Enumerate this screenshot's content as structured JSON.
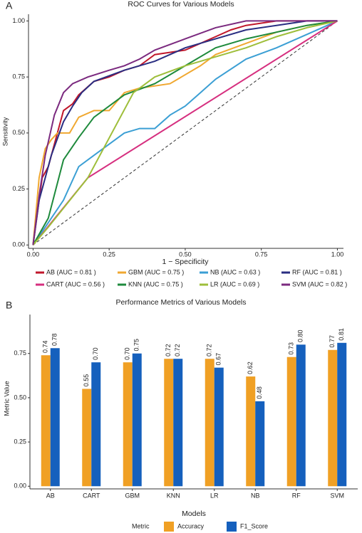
{
  "chart_data": [
    {
      "type": "line",
      "panel_label": "A",
      "title": "ROC Curves for Various Models",
      "x_label": "1 − Specificity",
      "y_label": "Sensitivity",
      "xlim": [
        -0.015,
        1.02
      ],
      "ylim": [
        -0.015,
        1.03
      ],
      "xticks": [
        {
          "value": 0,
          "label": "0.00"
        },
        {
          "value": 0.25,
          "label": "0.25"
        },
        {
          "value": 0.5,
          "label": "0.50"
        },
        {
          "value": 0.75,
          "label": "0.75"
        },
        {
          "value": 1,
          "label": "1.00"
        }
      ],
      "yticks": [
        {
          "value": 0,
          "label": "0.00"
        },
        {
          "value": 0.25,
          "label": "0.25"
        },
        {
          "value": 0.5,
          "label": "0.50"
        },
        {
          "value": 0.75,
          "label": "0.75"
        },
        {
          "value": 1,
          "label": "1.00"
        }
      ],
      "grid": false,
      "legend": "bottom",
      "series": [
        {
          "name": "AB (AUC = 0.81 )",
          "color": "#c0172b",
          "x": [
            0,
            0.02,
            0.03,
            0.05,
            0.07,
            0.1,
            0.13,
            0.15,
            0.2,
            0.25,
            0.3,
            0.35,
            0.4,
            0.5,
            0.6,
            0.65,
            0.7,
            0.8,
            1
          ],
          "values": [
            0,
            0.2,
            0.3,
            0.35,
            0.45,
            0.6,
            0.63,
            0.67,
            0.73,
            0.75,
            0.78,
            0.8,
            0.85,
            0.87,
            0.93,
            0.96,
            0.98,
            1,
            1
          ]
        },
        {
          "name": "GBM (AUC = 0.75 )",
          "color": "#f0a830",
          "x": [
            0,
            0.02,
            0.04,
            0.06,
            0.08,
            0.12,
            0.15,
            0.2,
            0.25,
            0.3,
            0.35,
            0.45,
            0.55,
            0.6,
            0.7,
            0.8,
            0.9,
            1
          ],
          "values": [
            0,
            0.3,
            0.43,
            0.47,
            0.5,
            0.5,
            0.57,
            0.6,
            0.6,
            0.68,
            0.7,
            0.72,
            0.8,
            0.85,
            0.9,
            0.95,
            0.98,
            1
          ]
        },
        {
          "name": "NB (AUC = 0.63 )",
          "color": "#3b9fd4",
          "x": [
            0,
            0.05,
            0.1,
            0.15,
            0.2,
            0.25,
            0.3,
            0.35,
            0.4,
            0.45,
            0.5,
            0.55,
            0.6,
            0.7,
            0.8,
            0.9,
            1
          ],
          "values": [
            0,
            0.1,
            0.2,
            0.35,
            0.4,
            0.45,
            0.5,
            0.52,
            0.52,
            0.58,
            0.62,
            0.68,
            0.74,
            0.83,
            0.88,
            0.94,
            1
          ]
        },
        {
          "name": "RF (AUC = 0.81 )",
          "color": "#2a2e82",
          "x": [
            0,
            0.02,
            0.04,
            0.06,
            0.1,
            0.13,
            0.16,
            0.2,
            0.3,
            0.4,
            0.5,
            0.6,
            0.7,
            0.8,
            0.9,
            1
          ],
          "values": [
            0,
            0.2,
            0.3,
            0.4,
            0.55,
            0.62,
            0.68,
            0.73,
            0.78,
            0.82,
            0.88,
            0.92,
            0.96,
            0.98,
            1,
            1
          ]
        },
        {
          "name": "CART (AUC = 0.56 )",
          "color": "#d62f7f",
          "x": [
            0,
            0.18,
            1
          ],
          "values": [
            0,
            0.3,
            1
          ]
        },
        {
          "name": "KNN (AUC = 0.75 )",
          "color": "#1e8a3c",
          "x": [
            0,
            0.05,
            0.1,
            0.15,
            0.2,
            0.3,
            0.4,
            0.5,
            0.6,
            0.7,
            0.8,
            0.9,
            1
          ],
          "values": [
            0,
            0.12,
            0.38,
            0.48,
            0.57,
            0.67,
            0.72,
            0.8,
            0.88,
            0.92,
            0.95,
            0.98,
            1
          ]
        },
        {
          "name": "LR (AUC = 0.69 )",
          "color": "#9ebe3a",
          "x": [
            0,
            0.05,
            0.18,
            0.33,
            0.4,
            0.5,
            0.6,
            0.7,
            0.8,
            0.9,
            1
          ],
          "values": [
            0,
            0.08,
            0.3,
            0.68,
            0.75,
            0.8,
            0.84,
            0.88,
            0.93,
            0.97,
            1
          ]
        },
        {
          "name": "SVM (AUC = 0.82 )",
          "color": "#7b2a7f",
          "x": [
            0,
            0.02,
            0.04,
            0.07,
            0.1,
            0.13,
            0.18,
            0.25,
            0.3,
            0.35,
            0.4,
            0.5,
            0.6,
            0.7,
            1
          ],
          "values": [
            0,
            0.22,
            0.4,
            0.58,
            0.68,
            0.72,
            0.75,
            0.78,
            0.8,
            0.83,
            0.87,
            0.92,
            0.97,
            1,
            1
          ]
        }
      ]
    },
    {
      "type": "bar",
      "panel_label": "B",
      "title": "Performance Metrics of Various Models",
      "x_label": "Models",
      "y_label": "Metric Value",
      "legend_title": "Metric",
      "categories": [
        "AB",
        "CART",
        "GBM",
        "KNN",
        "LR",
        "NB",
        "RF",
        "SVM"
      ],
      "ylim": [
        -0.015,
        0.97
      ],
      "yticks": [
        {
          "value": 0,
          "label": "0.00"
        },
        {
          "value": 0.25,
          "label": "0.25"
        },
        {
          "value": 0.5,
          "label": "0.50"
        },
        {
          "value": 0.75,
          "label": "0.75"
        }
      ],
      "grid": false,
      "legend": "bottom",
      "series": [
        {
          "name": "Accuracy",
          "color": "#f0a024",
          "values": [
            0.74,
            0.55,
            0.7,
            0.72,
            0.72,
            0.62,
            0.73,
            0.77
          ],
          "value_labels": [
            "0.74",
            "0.55",
            "0.70",
            "0.72",
            "0.72",
            "0.62",
            "0.73",
            "0.77"
          ]
        },
        {
          "name": "F1_Score",
          "color": "#1560bd",
          "values": [
            0.78,
            0.7,
            0.75,
            0.72,
            0.67,
            0.48,
            0.8,
            0.81
          ],
          "value_labels": [
            "0.78",
            "0.70",
            "0.75",
            "0.72",
            "0.67",
            "0.48",
            "0.80",
            "0.81"
          ]
        }
      ]
    }
  ]
}
